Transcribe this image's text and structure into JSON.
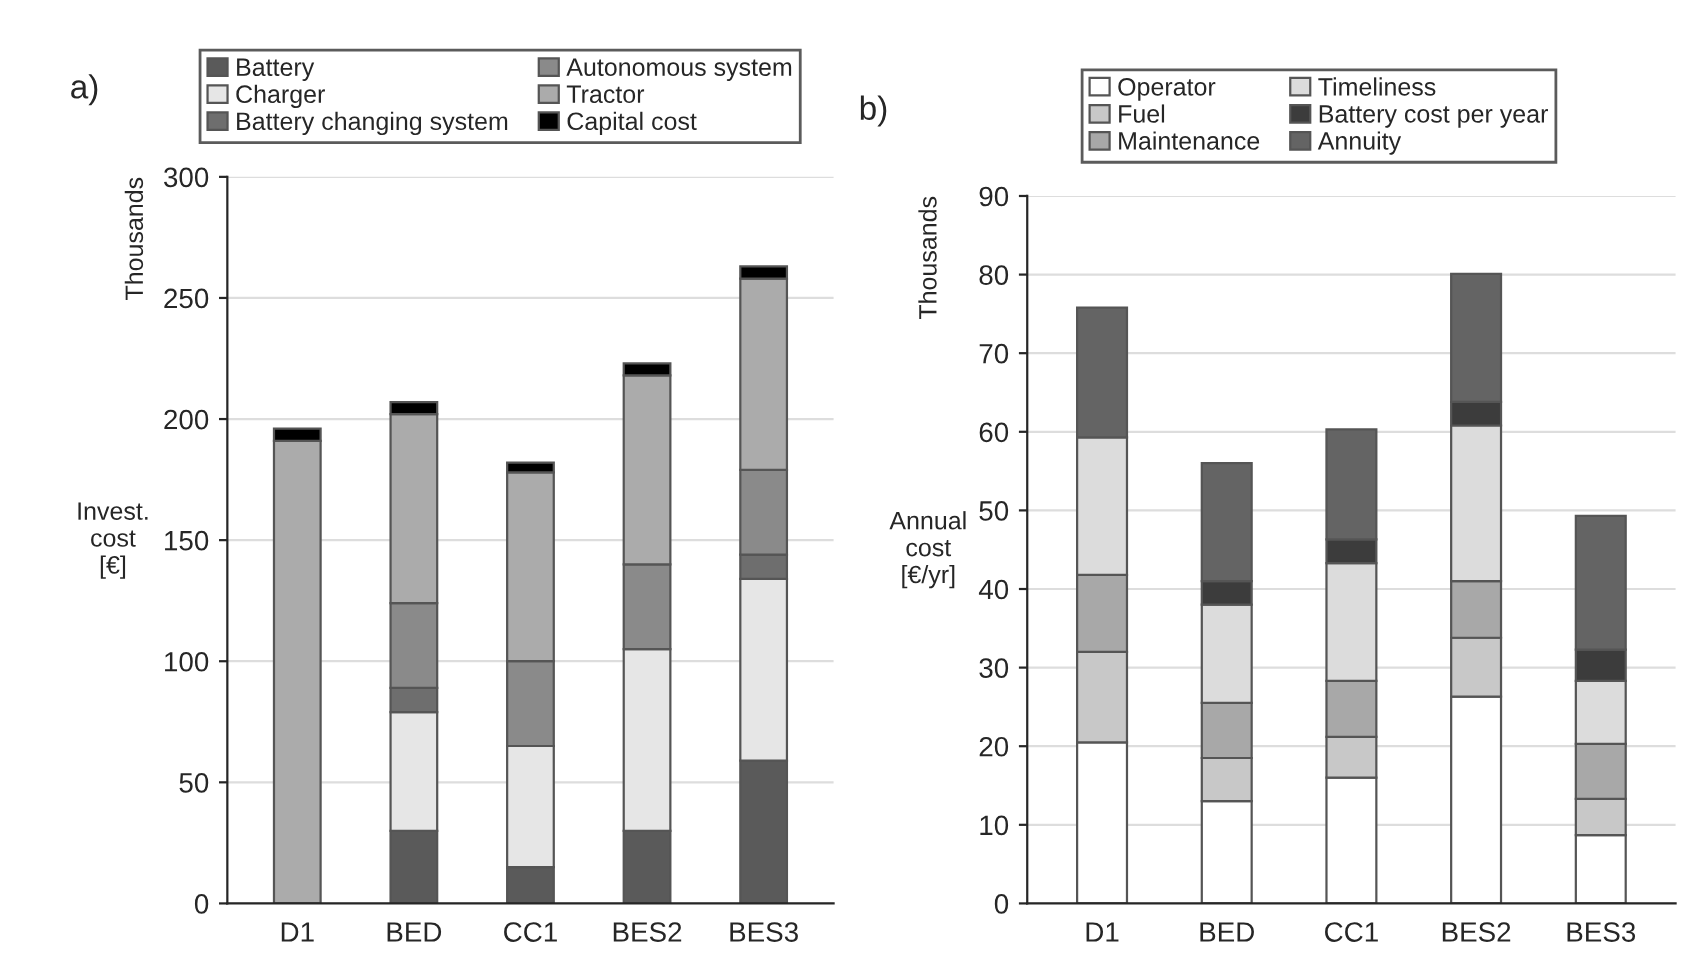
{
  "chart_data": [
    {
      "type": "bar",
      "title": "a)",
      "ylabel": "Invest.\ncost\n[€]",
      "annotations": [
        "Thousands"
      ],
      "categories": [
        "D1",
        "BED",
        "CC1",
        "BES2",
        "BES3"
      ],
      "stacked": true,
      "ylim": [
        0,
        300
      ],
      "yticks": [
        0,
        50,
        100,
        150,
        200,
        250,
        300
      ],
      "grid": "y",
      "legend": "top",
      "series": [
        {
          "name": "Battery",
          "color": "#5a5a5a",
          "values": [
            null,
            30,
            15,
            30,
            59
          ]
        },
        {
          "name": "Charger",
          "color": "#e6e6e6",
          "values": [
            null,
            49,
            50,
            75,
            75
          ]
        },
        {
          "name": "Battery changing system",
          "color": "#6e6e6e",
          "values": [
            null,
            10,
            null,
            null,
            10
          ]
        },
        {
          "name": "Autonomous system",
          "color": "#8a8a8a",
          "values": [
            null,
            35,
            35,
            35,
            35
          ]
        },
        {
          "name": "Tractor",
          "color": "#ababab",
          "values": [
            191,
            78,
            78,
            78,
            79
          ]
        },
        {
          "name": "Capital cost",
          "color": "#000000",
          "values": [
            5,
            5,
            4,
            5,
            5
          ]
        }
      ]
    },
    {
      "type": "bar",
      "title": "b)",
      "ylabel": "Annual\ncost\n[€/yr]",
      "annotations": [
        "Thousands"
      ],
      "categories": [
        "D1",
        "BED",
        "CC1",
        "BES2",
        "BES3"
      ],
      "stacked": true,
      "ylim": [
        0,
        90
      ],
      "yticks": [
        0,
        10,
        20,
        30,
        40,
        50,
        60,
        70,
        80,
        90
      ],
      "grid": "y",
      "legend": "top",
      "series": [
        {
          "name": "Operator",
          "color": "#ffffff",
          "values": [
            20.5,
            13,
            16,
            26.3,
            8.7
          ]
        },
        {
          "name": "Fuel",
          "color": "#c8c8c8",
          "values": [
            11.5,
            5.5,
            5.2,
            7.5,
            4.6
          ]
        },
        {
          "name": "Maintenance",
          "color": "#a8a8a8",
          "values": [
            9.8,
            7,
            7.1,
            7.2,
            7
          ]
        },
        {
          "name": "Timeliness",
          "color": "#dcdcdc",
          "values": [
            17.5,
            12.5,
            15,
            19.8,
            8
          ]
        },
        {
          "name": "Battery cost per year",
          "color": "#3c3c3c",
          "values": [
            null,
            3,
            3,
            3,
            4
          ]
        },
        {
          "name": "Annuity",
          "color": "#646464",
          "values": [
            16.5,
            15,
            14,
            16.3,
            17
          ]
        }
      ]
    }
  ]
}
